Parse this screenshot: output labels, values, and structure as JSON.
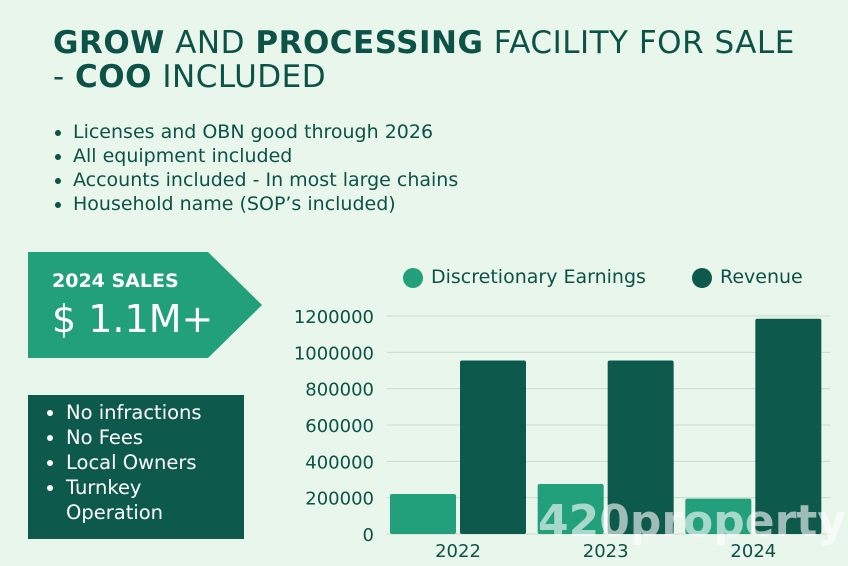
{
  "title": {
    "part1_bold": "GROW",
    "part2": " AND ",
    "part3_bold": "PROCESSING",
    "part4": " FACILITY FOR SALE - ",
    "part5_bold": "COO",
    "part6": " INCLUDED"
  },
  "highlights": [
    "Licenses and OBN good through 2026",
    "All equipment included",
    "Accounts included - In most large chains",
    "Household name (SOP’s included)"
  ],
  "sales": {
    "label": "2024 SALES",
    "value": "$ 1.1M+"
  },
  "features": [
    "No infractions",
    "No Fees",
    "Local Owners",
    "Turnkey Operation"
  ],
  "watermark": "420property",
  "colors": {
    "dark_green": "#0d5a4d",
    "light_green": "#22a07b",
    "background": "#e9f6ec",
    "text": "#0d5247"
  },
  "chart_data": {
    "type": "bar",
    "categories": [
      "2022",
      "2023",
      "2024"
    ],
    "series": [
      {
        "name": "Discretionary Earnings",
        "values": [
          220000,
          275000,
          195000
        ],
        "color": "#22a07b"
      },
      {
        "name": "Revenue",
        "values": [
          955000,
          955000,
          1185000
        ],
        "color": "#0d5a4d"
      }
    ],
    "yticks": [
      0,
      200000,
      400000,
      600000,
      800000,
      1000000,
      1200000
    ],
    "ylim": [
      0,
      1200000
    ],
    "title": "",
    "xlabel": "",
    "ylabel": "",
    "legend": "top"
  }
}
